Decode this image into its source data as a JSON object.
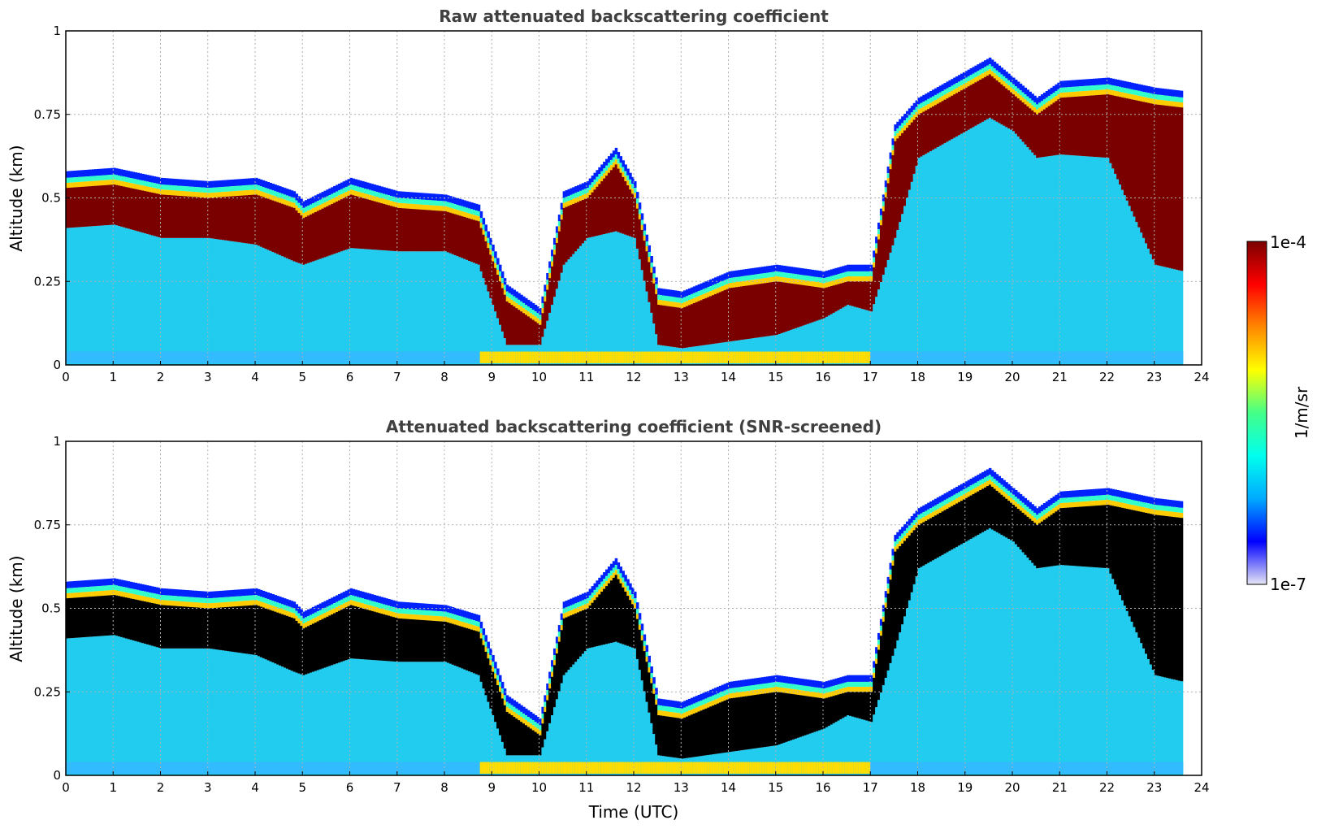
{
  "chart_data": [
    {
      "type": "heatmap",
      "title": "Raw attenuated backscattering coefficient",
      "xlabel": "",
      "ylabel": "Altitude (km)",
      "xlim": [
        0,
        24
      ],
      "ylim": [
        0,
        1
      ],
      "xticks": [
        "0",
        "1",
        "2",
        "3",
        "4",
        "5",
        "6",
        "7",
        "8",
        "9",
        "10",
        "11",
        "12",
        "13",
        "14",
        "15",
        "16",
        "17",
        "18",
        "19",
        "20",
        "21",
        "22",
        "23",
        "24"
      ],
      "yticks": [
        "0",
        "0.25",
        "0.5",
        "0.75",
        "1"
      ],
      "grid": true,
      "screened": false,
      "colorscale": "jet",
      "layer_profile": {
        "time_utc": [
          0,
          1,
          2,
          3,
          4,
          4.8,
          5,
          6,
          7,
          8,
          8.7,
          9.3,
          10,
          10.5,
          11,
          11.6,
          12,
          12.5,
          13,
          14,
          15,
          16,
          16.5,
          17,
          17.5,
          18,
          19,
          19.5,
          20,
          20.5,
          21,
          22,
          23,
          23.6
        ],
        "top_km": [
          0.58,
          0.59,
          0.56,
          0.55,
          0.56,
          0.52,
          0.49,
          0.56,
          0.52,
          0.51,
          0.48,
          0.24,
          0.17,
          0.52,
          0.55,
          0.65,
          0.55,
          0.23,
          0.22,
          0.28,
          0.3,
          0.28,
          0.3,
          0.3,
          0.72,
          0.8,
          0.88,
          0.92,
          0.86,
          0.8,
          0.85,
          0.86,
          0.83,
          0.82
        ],
        "peak_base_km": [
          0.41,
          0.42,
          0.38,
          0.38,
          0.36,
          0.31,
          0.3,
          0.35,
          0.34,
          0.34,
          0.3,
          0.06,
          0.06,
          0.3,
          0.38,
          0.4,
          0.38,
          0.06,
          0.05,
          0.07,
          0.09,
          0.14,
          0.18,
          0.16,
          0.38,
          0.62,
          0.7,
          0.74,
          0.7,
          0.62,
          0.63,
          0.62,
          0.3,
          0.28
        ]
      }
    },
    {
      "type": "heatmap",
      "title": "Attenuated backscattering coefficient (SNR-screened)",
      "xlabel": "Time (UTC)",
      "ylabel": "Altitude (km)",
      "xlim": [
        0,
        24
      ],
      "ylim": [
        0,
        1
      ],
      "xticks": [
        "0",
        "1",
        "2",
        "3",
        "4",
        "5",
        "6",
        "7",
        "8",
        "9",
        "10",
        "11",
        "12",
        "13",
        "14",
        "15",
        "16",
        "17",
        "18",
        "19",
        "20",
        "21",
        "22",
        "23",
        "24"
      ],
      "yticks": [
        "0",
        "0.25",
        "0.5",
        "0.75",
        "1"
      ],
      "grid": true,
      "screened": true,
      "colorscale": "jet",
      "layer_profile": {
        "time_utc": [
          0,
          1,
          2,
          3,
          4,
          4.8,
          5,
          6,
          7,
          8,
          8.7,
          9.3,
          10,
          10.5,
          11,
          11.6,
          12,
          12.5,
          13,
          14,
          15,
          16,
          16.5,
          17,
          17.5,
          18,
          19,
          19.5,
          20,
          20.5,
          21,
          22,
          23,
          23.6
        ],
        "top_km": [
          0.58,
          0.59,
          0.56,
          0.55,
          0.56,
          0.52,
          0.49,
          0.56,
          0.52,
          0.51,
          0.48,
          0.24,
          0.17,
          0.52,
          0.55,
          0.65,
          0.55,
          0.23,
          0.22,
          0.28,
          0.3,
          0.28,
          0.3,
          0.3,
          0.72,
          0.8,
          0.88,
          0.92,
          0.86,
          0.8,
          0.85,
          0.86,
          0.83,
          0.82
        ],
        "peak_base_km": [
          0.41,
          0.42,
          0.38,
          0.38,
          0.36,
          0.31,
          0.3,
          0.35,
          0.34,
          0.34,
          0.3,
          0.06,
          0.06,
          0.3,
          0.38,
          0.4,
          0.38,
          0.06,
          0.05,
          0.07,
          0.09,
          0.14,
          0.18,
          0.16,
          0.38,
          0.62,
          0.7,
          0.74,
          0.7,
          0.62,
          0.63,
          0.62,
          0.3,
          0.28
        ]
      }
    }
  ],
  "colorbar": {
    "label": "1/m/sr",
    "max_label": "1e-4",
    "min_label": "1e-7",
    "stops": [
      "#e6e6f5",
      "#0000ff",
      "#00aaff",
      "#00ffee",
      "#44ff88",
      "#ffff00",
      "#ff8800",
      "#ff0000",
      "#7a0000"
    ]
  }
}
